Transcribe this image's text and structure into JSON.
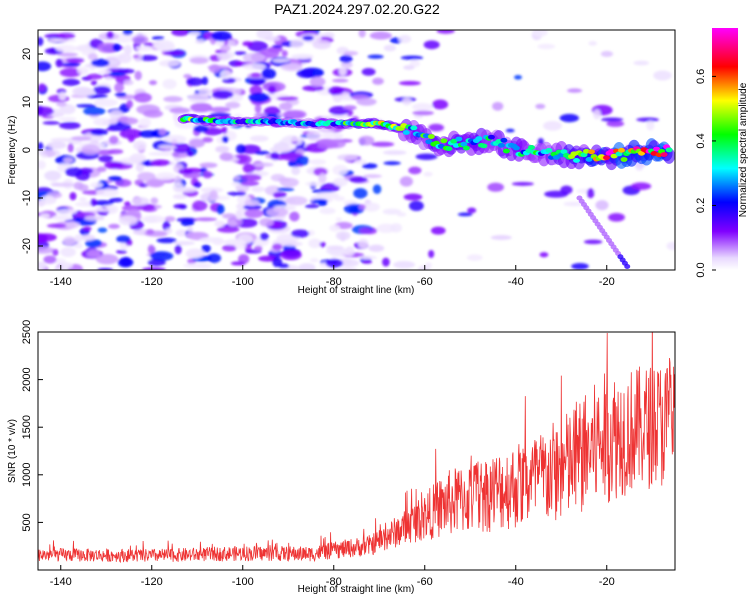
{
  "figure": {
    "title": "PAZ1.2024.297.02.20.G22"
  },
  "chart_data": [
    {
      "type": "heatmap",
      "title": "PAZ1.2024.297.02.20.G22",
      "xlabel": "Height of straight line (km)",
      "ylabel": "Frequency (Hz)",
      "xlim": [
        -145,
        -5
      ],
      "ylim": [
        -25,
        25
      ],
      "x_ticks": [
        -140,
        -120,
        -100,
        -80,
        -60,
        -40,
        -20
      ],
      "y_ticks": [
        -20,
        -10,
        0,
        10,
        20
      ],
      "colorbar": {
        "label": "Normalized spectral amplitude",
        "range": [
          0.0,
          0.75
        ],
        "ticks": [
          0.0,
          0.2,
          0.4,
          0.6
        ],
        "colormap": [
          "#ffffff",
          "#8000ff",
          "#0000ff",
          "#00ffff",
          "#00ff00",
          "#ffff00",
          "#ff0000",
          "#ff00ff"
        ]
      },
      "ridge": {
        "points": [
          {
            "x": -113,
            "y": 6.5,
            "amp": 0.45
          },
          {
            "x": -105,
            "y": 6.0,
            "amp": 0.35
          },
          {
            "x": -95,
            "y": 6.0,
            "amp": 0.3
          },
          {
            "x": -85,
            "y": 5.5,
            "amp": 0.3
          },
          {
            "x": -70,
            "y": 5.5,
            "amp": 0.5
          },
          {
            "x": -63,
            "y": 4.0,
            "amp": 0.4
          },
          {
            "x": -56,
            "y": 1.0,
            "amp": 0.4
          },
          {
            "x": -45,
            "y": 2.0,
            "amp": 0.35
          },
          {
            "x": -40,
            "y": 0.0,
            "amp": 0.35
          },
          {
            "x": -30,
            "y": -1.0,
            "amp": 0.4
          },
          {
            "x": -20,
            "y": -1.5,
            "amp": 0.65
          },
          {
            "x": -12,
            "y": -0.5,
            "amp": 0.6
          },
          {
            "x": -6,
            "y": 0.0,
            "amp": 0.7
          }
        ]
      },
      "grid": false,
      "legend": "none"
    },
    {
      "type": "line",
      "xlabel": "Height of straight line (km)",
      "ylabel": "SNR (10 * v/v)",
      "xlim": [
        -145,
        -5
      ],
      "ylim": [
        0,
        2500
      ],
      "x_ticks": [
        -140,
        -120,
        -100,
        -80,
        -60,
        -40,
        -20
      ],
      "y_ticks": [
        500,
        1000,
        1500,
        2000,
        2500
      ],
      "color": "#ee3333",
      "series": [
        {
          "envelope": [
            {
              "x": -145,
              "mean": 160,
              "spread": 70
            },
            {
              "x": -120,
              "mean": 150,
              "spread": 70
            },
            {
              "x": -100,
              "mean": 175,
              "spread": 80
            },
            {
              "x": -85,
              "mean": 170,
              "spread": 80
            },
            {
              "x": -72,
              "mean": 260,
              "spread": 110
            },
            {
              "x": -63,
              "mean": 480,
              "spread": 200
            },
            {
              "x": -55,
              "mean": 700,
              "spread": 350
            },
            {
              "x": -45,
              "mean": 820,
              "spread": 420
            },
            {
              "x": -35,
              "mean": 950,
              "spread": 500
            },
            {
              "x": -28,
              "mean": 1100,
              "spread": 600
            },
            {
              "x": -20,
              "mean": 1400,
              "spread": 700
            },
            {
              "x": -12,
              "mean": 1500,
              "spread": 650
            },
            {
              "x": -5,
              "mean": 1550,
              "spread": 700
            }
          ]
        }
      ],
      "grid": false,
      "legend": "none"
    }
  ]
}
